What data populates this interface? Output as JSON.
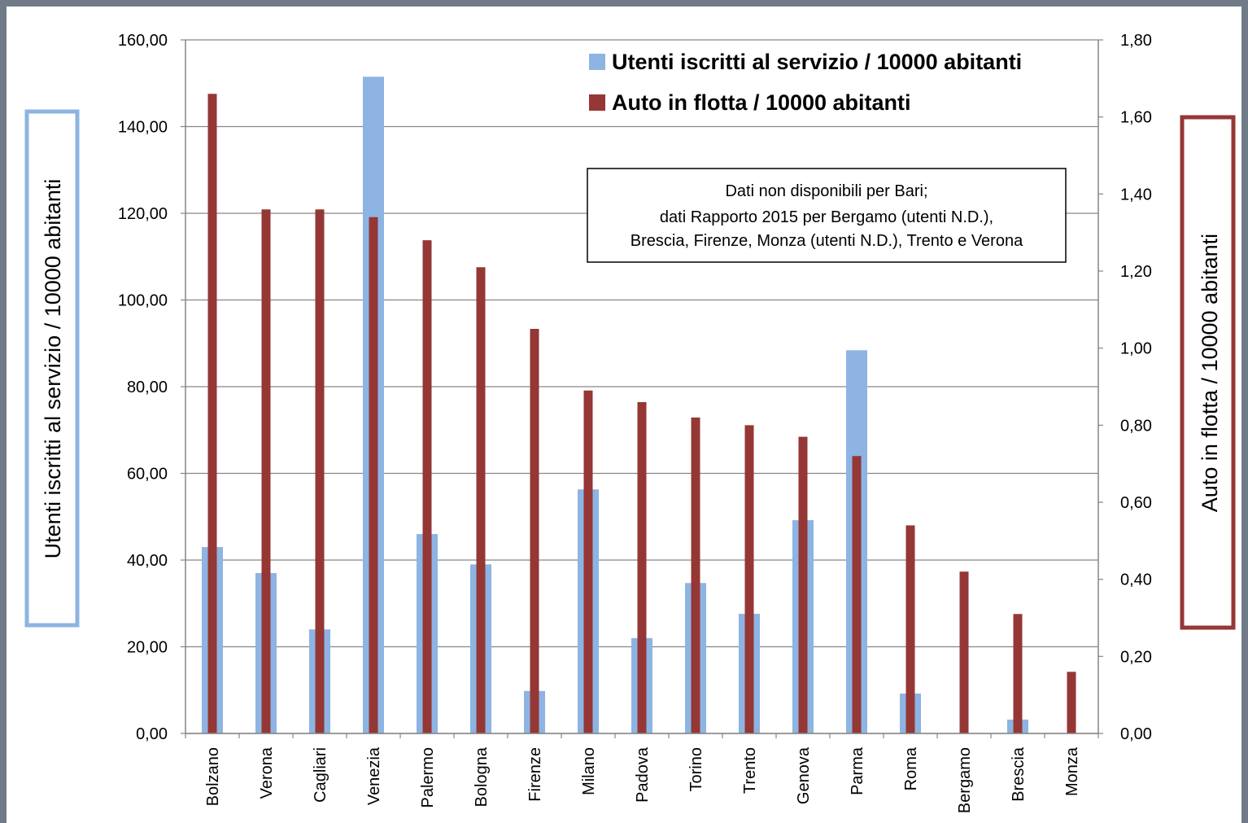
{
  "chart_data": {
    "type": "bar",
    "categories": [
      "Bolzano",
      "Verona",
      "Cagliari",
      "Venezia",
      "Palermo",
      "Bologna",
      "Firenze",
      "Milano",
      "Padova",
      "Torino",
      "Trento",
      "Genova",
      "Parma",
      "Roma",
      "Bergamo",
      "Brescia",
      "Monza"
    ],
    "series": [
      {
        "name": "Utenti iscritti  al servizio  / 10000 abitanti",
        "axis": "left",
        "color": "#8db4e2",
        "values": [
          43.0,
          37.0,
          24.0,
          151.5,
          46.0,
          39.0,
          9.8,
          56.3,
          22.0,
          34.7,
          27.6,
          49.2,
          88.4,
          9.2,
          0,
          3.2,
          0
        ]
      },
      {
        "name": "Auto in flotta / 10000 abitanti",
        "axis": "right",
        "color": "#953735",
        "values": [
          1.66,
          1.36,
          1.36,
          1.34,
          1.28,
          1.21,
          1.05,
          0.89,
          0.86,
          0.82,
          0.8,
          0.77,
          0.72,
          0.54,
          0.42,
          0.31,
          0.16
        ]
      }
    ],
    "ylabel": "Utenti iscritti al servizio / 10000 abitanti",
    "ylabel_right": "Auto in flotta / 10000 abitanti",
    "ylim": [
      0,
      160
    ],
    "ylim_right": [
      0,
      1.8
    ],
    "yticks": [
      "0,00",
      "20,00",
      "40,00",
      "60,00",
      "80,00",
      "100,00",
      "120,00",
      "140,00",
      "160,00"
    ],
    "yticks_right": [
      "0,00",
      "0,20",
      "0,40",
      "0,60",
      "0,80",
      "1,00",
      "1,20",
      "1,40",
      "1,60",
      "1,80"
    ],
    "grid": true,
    "legend_position": "top-right",
    "annotation": [
      "Dati non disponibili per Bari;",
      "dati Rapporto 2015 per Bergamo (utenti N.D.),",
      "Brescia, Firenze, Monza (utenti N.D.), Trento e Verona"
    ]
  }
}
